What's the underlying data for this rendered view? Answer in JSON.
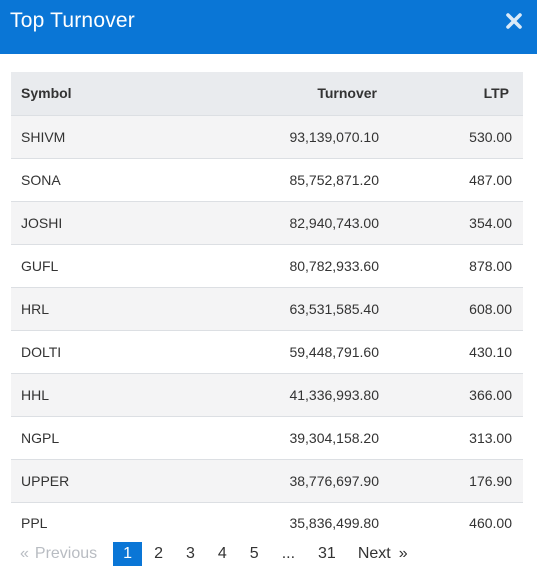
{
  "header": {
    "title": "Top Turnover",
    "close_icon": "close-icon",
    "accent_color": "#0a76d6"
  },
  "table": {
    "columns": [
      "Symbol",
      "Turnover",
      "LTP"
    ],
    "rows": [
      {
        "symbol": "SHIVM",
        "turnover": "93,139,070.10",
        "ltp": "530.00"
      },
      {
        "symbol": "SONA",
        "turnover": "85,752,871.20",
        "ltp": "487.00"
      },
      {
        "symbol": "JOSHI",
        "turnover": "82,940,743.00",
        "ltp": "354.00"
      },
      {
        "symbol": "GUFL",
        "turnover": "80,782,933.60",
        "ltp": "878.00"
      },
      {
        "symbol": "HRL",
        "turnover": "63,531,585.40",
        "ltp": "608.00"
      },
      {
        "symbol": "DOLTI",
        "turnover": "59,448,791.60",
        "ltp": "430.10"
      },
      {
        "symbol": "HHL",
        "turnover": "41,336,993.80",
        "ltp": "366.00"
      },
      {
        "symbol": "NGPL",
        "turnover": "39,304,158.20",
        "ltp": "313.00"
      },
      {
        "symbol": "UPPER",
        "turnover": "38,776,697.90",
        "ltp": "176.90"
      },
      {
        "symbol": "PPL",
        "turnover": "35,836,499.80",
        "ltp": "460.00"
      }
    ]
  },
  "pagination": {
    "prev_symbol": "«",
    "prev_label": "Previous",
    "pages": [
      "1",
      "2",
      "3",
      "4",
      "5"
    ],
    "ellipsis": "...",
    "last_page": "31",
    "next_label": "Next",
    "next_symbol": "»",
    "current": "1"
  }
}
